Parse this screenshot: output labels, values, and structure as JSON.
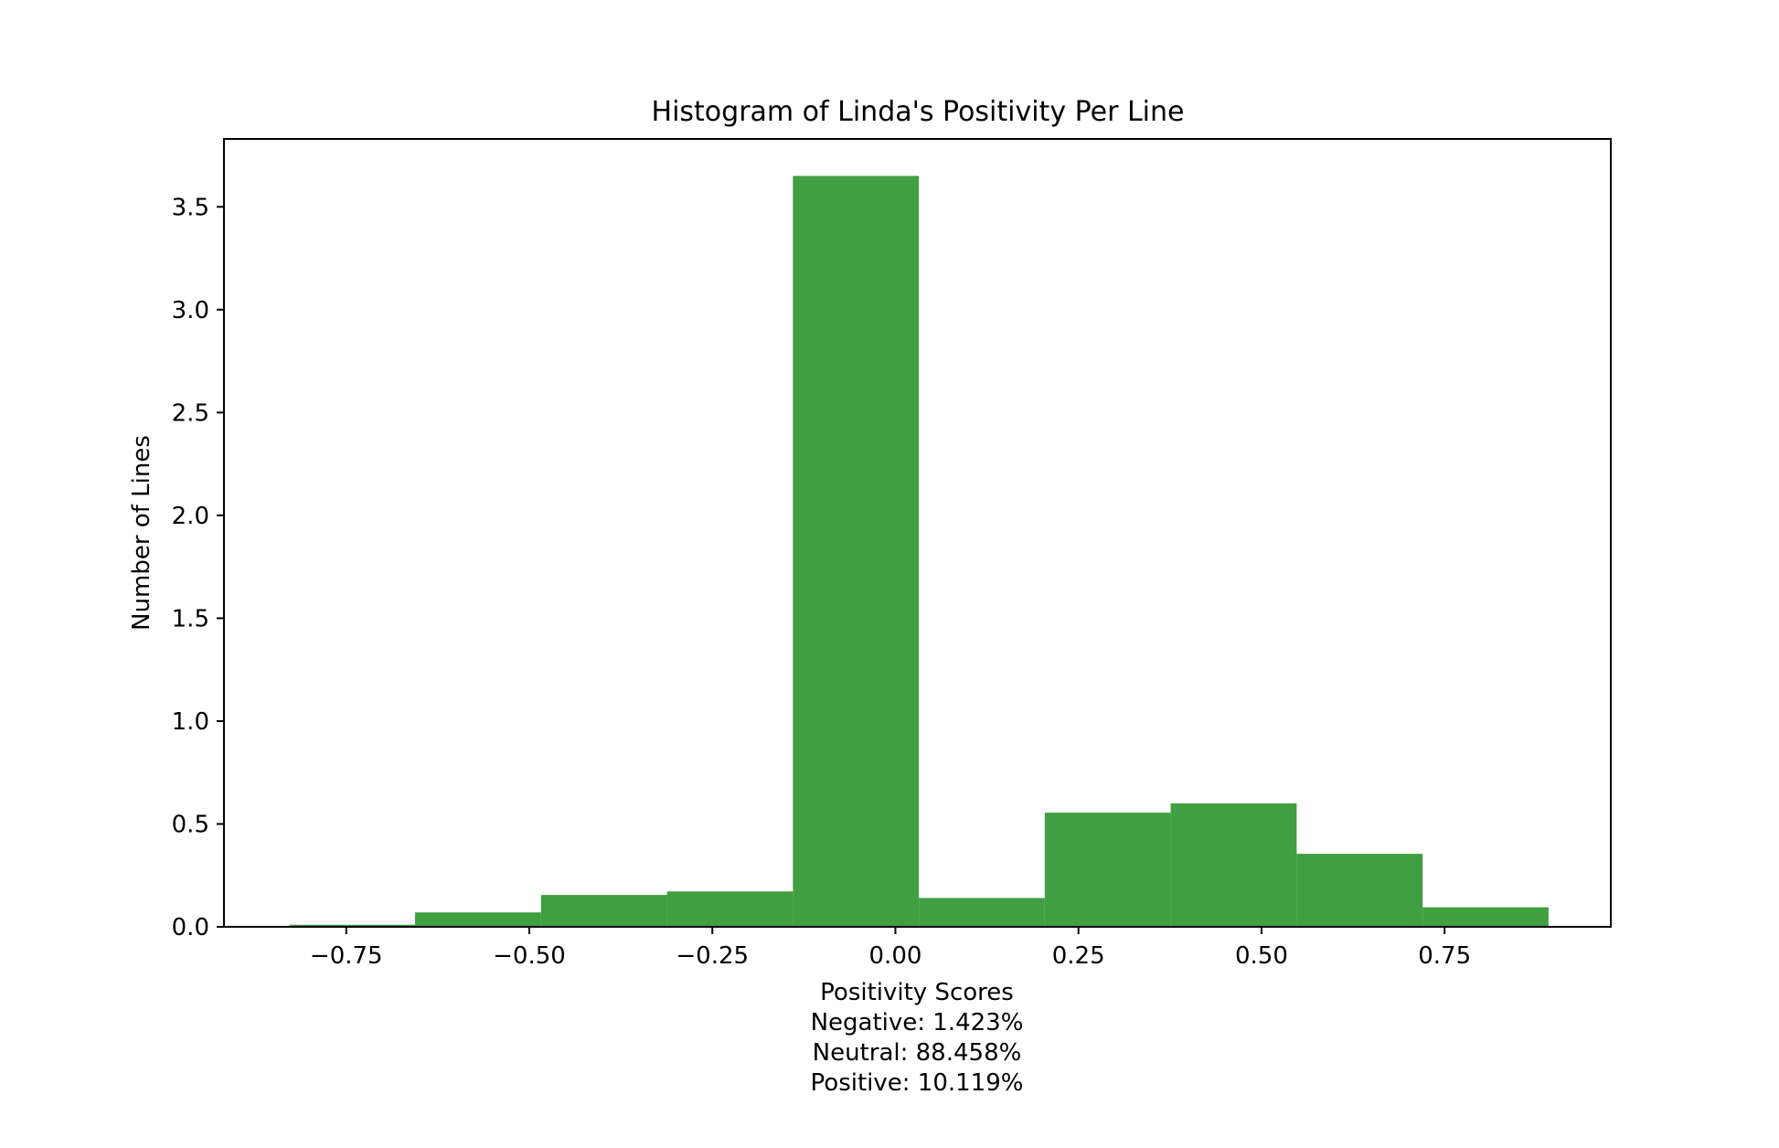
{
  "chart_data": {
    "type": "bar",
    "title": "Histogram of Linda's Positivity Per Line",
    "xlabel_lines": [
      "Positivity Scores",
      "Negative: 1.423%",
      "Neutral: 88.458%",
      "Positive: 10.119%"
    ],
    "ylabel": "Number of Lines",
    "bar_color": "#409f40",
    "grid": false,
    "xlim": [
      -0.917,
      0.977
    ],
    "ylim": [
      0,
      3.83
    ],
    "bins": [
      {
        "x0": -0.828,
        "x1": -0.656,
        "value": 0.01
      },
      {
        "x0": -0.656,
        "x1": -0.484,
        "value": 0.07
      },
      {
        "x0": -0.484,
        "x1": -0.312,
        "value": 0.155
      },
      {
        "x0": -0.312,
        "x1": -0.14,
        "value": 0.172
      },
      {
        "x0": -0.14,
        "x1": 0.032,
        "value": 3.65
      },
      {
        "x0": 0.032,
        "x1": 0.204,
        "value": 0.14
      },
      {
        "x0": 0.204,
        "x1": 0.376,
        "value": 0.555
      },
      {
        "x0": 0.376,
        "x1": 0.548,
        "value": 0.6
      },
      {
        "x0": 0.548,
        "x1": 0.72,
        "value": 0.355
      },
      {
        "x0": 0.72,
        "x1": 0.892,
        "value": 0.095
      }
    ],
    "x_ticks": [
      {
        "value": -0.75,
        "label": "−0.75"
      },
      {
        "value": -0.5,
        "label": "−0.50"
      },
      {
        "value": -0.25,
        "label": "−0.25"
      },
      {
        "value": 0.0,
        "label": "0.00"
      },
      {
        "value": 0.25,
        "label": "0.25"
      },
      {
        "value": 0.5,
        "label": "0.50"
      },
      {
        "value": 0.75,
        "label": "0.75"
      }
    ],
    "y_ticks": [
      {
        "value": 0.0,
        "label": "0.0"
      },
      {
        "value": 0.5,
        "label": "0.5"
      },
      {
        "value": 1.0,
        "label": "1.0"
      },
      {
        "value": 1.5,
        "label": "1.5"
      },
      {
        "value": 2.0,
        "label": "2.0"
      },
      {
        "value": 2.5,
        "label": "2.5"
      },
      {
        "value": 3.0,
        "label": "3.0"
      },
      {
        "value": 3.5,
        "label": "3.5"
      }
    ]
  }
}
